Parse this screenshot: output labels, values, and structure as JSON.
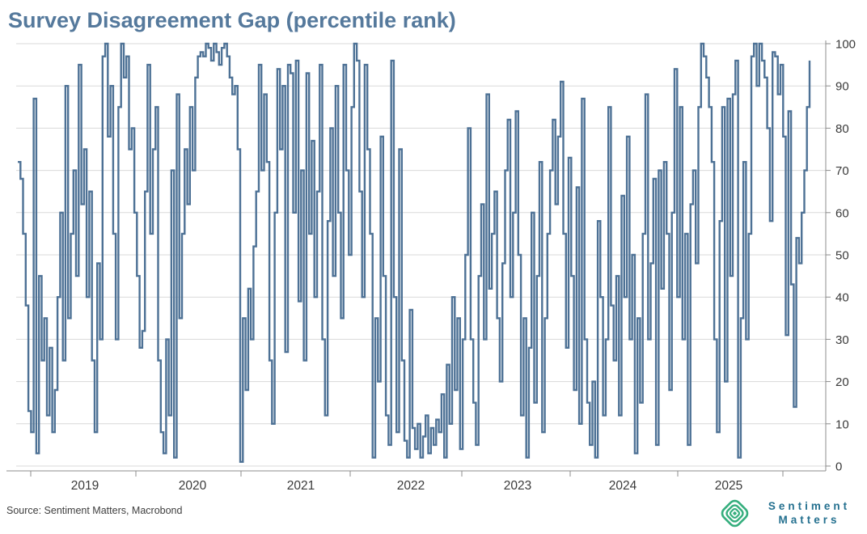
{
  "title": "Survey Disagreement Gap (percentile rank)",
  "source_note": "Source: Sentiment Matters, Macrobond",
  "logo": {
    "icon": "concentric-diamonds-icon",
    "icon_color": "#35ae7d",
    "line1": "Sentiment",
    "line2": "Matters",
    "text_color": "#24708f"
  },
  "colors": {
    "line": "#4d7195",
    "title": "#55799c",
    "grid": "#d9d9d9",
    "axis": "#8c8c8c",
    "tick_text": "#3a3a3a"
  },
  "chart_data": {
    "type": "line",
    "title": "Survey Disagreement Gap (percentile rank)",
    "line_style": "step",
    "grid": "horizontal",
    "y_axis_side": "right",
    "ylim": [
      0,
      100
    ],
    "y_ticks": [
      0,
      10,
      20,
      30,
      40,
      50,
      60,
      70,
      80,
      90,
      100
    ],
    "x_tick_labels": [
      "2019",
      "2020",
      "2021",
      "2022",
      "2023",
      "2024",
      "2025"
    ],
    "series": [
      {
        "name": "Survey Disagreement Gap (percentile rank)",
        "values": [
          72,
          68,
          55,
          38,
          13,
          8,
          87,
          3,
          45,
          25,
          35,
          12,
          28,
          8,
          18,
          40,
          60,
          25,
          90,
          35,
          55,
          70,
          45,
          95,
          62,
          75,
          40,
          65,
          25,
          8,
          48,
          30,
          97,
          100,
          78,
          90,
          55,
          30,
          85,
          100,
          92,
          97,
          75,
          80,
          60,
          45,
          28,
          32,
          65,
          95,
          55,
          75,
          85,
          25,
          8,
          3,
          30,
          12,
          70,
          2,
          88,
          35,
          55,
          75,
          62,
          85,
          70,
          92,
          97,
          98,
          97,
          100,
          99,
          96,
          100,
          98,
          95,
          99,
          100,
          97,
          92,
          88,
          90,
          75,
          1,
          35,
          18,
          42,
          30,
          52,
          65,
          95,
          70,
          88,
          72,
          25,
          10,
          60,
          94,
          75,
          90,
          27,
          95,
          93,
          60,
          96,
          39,
          70,
          25,
          93,
          55,
          77,
          40,
          65,
          95,
          30,
          12,
          58,
          80,
          45,
          90,
          60,
          35,
          95,
          70,
          50,
          85,
          100,
          96,
          65,
          40,
          95,
          75,
          55,
          2,
          35,
          20,
          78,
          45,
          12,
          5,
          96,
          40,
          8,
          75,
          25,
          6,
          2,
          37,
          9,
          4,
          10,
          2,
          7,
          12,
          3,
          9,
          5,
          11,
          8,
          17,
          2,
          24,
          10,
          40,
          18,
          35,
          4,
          30,
          50,
          80,
          30,
          15,
          5,
          45,
          62,
          30,
          88,
          42,
          55,
          65,
          35,
          20,
          48,
          70,
          82,
          40,
          60,
          84,
          50,
          12,
          35,
          2,
          28,
          60,
          15,
          45,
          72,
          8,
          35,
          55,
          70,
          82,
          62,
          78,
          91,
          55,
          28,
          73,
          45,
          18,
          66,
          10,
          87,
          30,
          15,
          5,
          20,
          2,
          58,
          40,
          12,
          30,
          85,
          38,
          25,
          45,
          12,
          64,
          40,
          78,
          30,
          50,
          3,
          35,
          15,
          55,
          88,
          30,
          48,
          68,
          5,
          70,
          42,
          72,
          55,
          18,
          60,
          94,
          40,
          85,
          30,
          55,
          5,
          62,
          70,
          48,
          85,
          100,
          97,
          92,
          85,
          72,
          30,
          8,
          58,
          85,
          20,
          87,
          45,
          88,
          96,
          2,
          35,
          72,
          30,
          55,
          97,
          100,
          90,
          100,
          96,
          92,
          80,
          58,
          98,
          97,
          88,
          95,
          78,
          31,
          84,
          43,
          14,
          54,
          48,
          60,
          70,
          85,
          96
        ]
      }
    ]
  }
}
